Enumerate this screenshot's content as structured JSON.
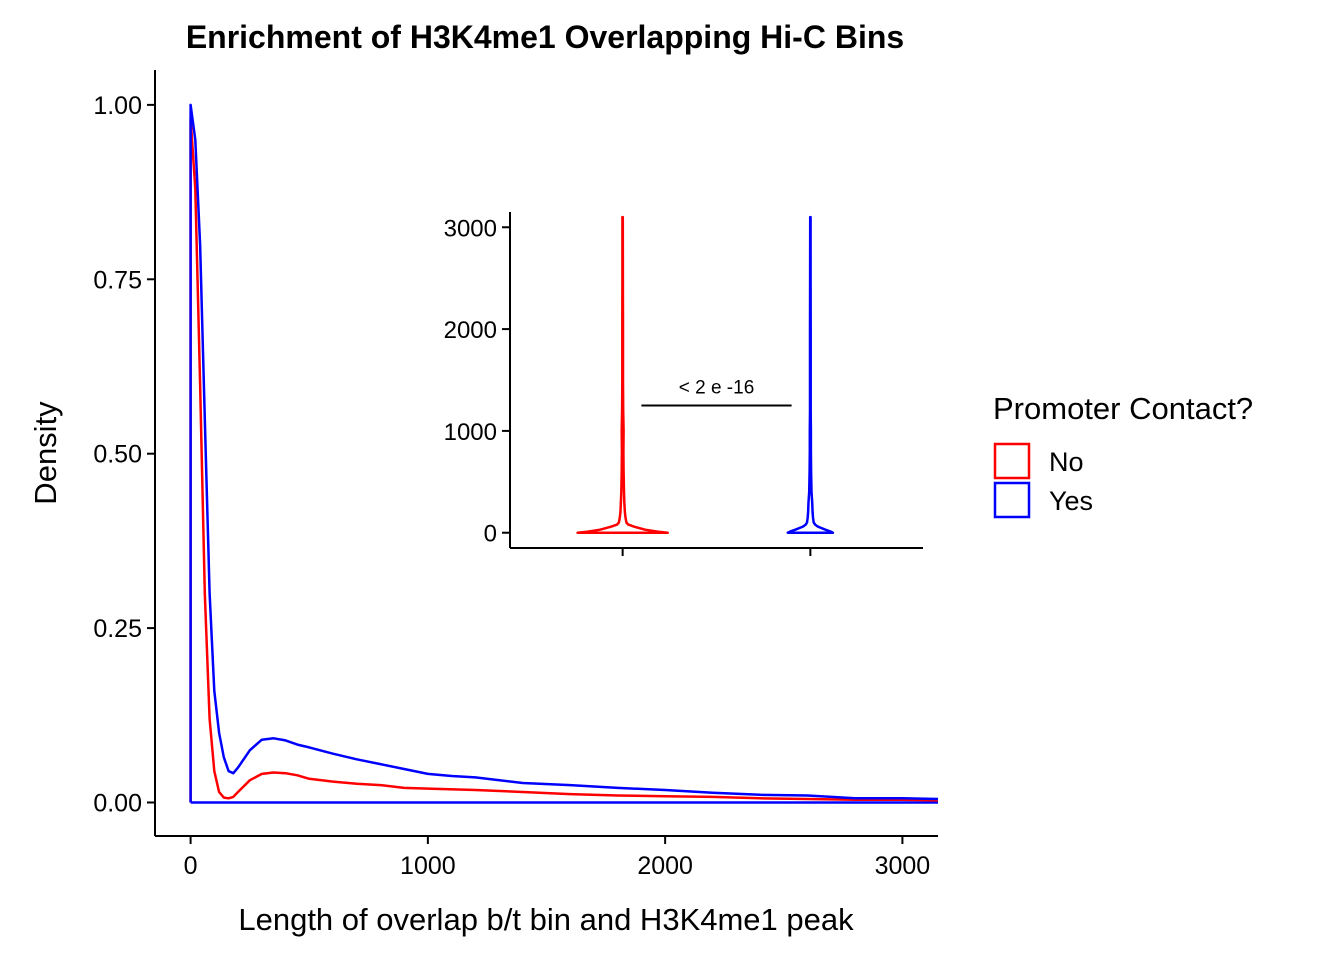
{
  "chart_data": [
    {
      "type": "line",
      "chart_kind": "density",
      "title": "Enrichment of H3K4me1 Overlapping Hi-C Bins",
      "xlabel": "Length of overlap b/t bin and H3K4me1 peak",
      "ylabel": "Density",
      "xlim": [
        -150,
        3150
      ],
      "ylim": [
        -0.048,
        1.05
      ],
      "xticks": [
        0,
        1000,
        2000,
        3000
      ],
      "xtick_labels": [
        "0",
        "1000",
        "2000",
        "3000"
      ],
      "yticks": [
        0,
        0.25,
        0.5,
        0.75,
        1.0
      ],
      "ytick_labels": [
        "0.00",
        "0.25",
        "0.50",
        "0.75",
        "1.00"
      ],
      "grid": false,
      "legend_position": "right",
      "series": [
        {
          "name": "No",
          "color": "#FF0000",
          "x": [
            0,
            0,
            20,
            40,
            60,
            80,
            100,
            120,
            140,
            160,
            180,
            200,
            250,
            300,
            350,
            400,
            450,
            500,
            600,
            700,
            800,
            900,
            1000,
            1200,
            1400,
            1600,
            1800,
            2000,
            2200,
            2400,
            2600,
            2800,
            3000,
            3150
          ],
          "y": [
            0,
            0.98,
            0.88,
            0.6,
            0.3,
            0.12,
            0.045,
            0.015,
            0.007,
            0.006,
            0.008,
            0.015,
            0.032,
            0.041,
            0.043,
            0.042,
            0.039,
            0.034,
            0.03,
            0.027,
            0.025,
            0.021,
            0.02,
            0.018,
            0.015,
            0.012,
            0.01,
            0.009,
            0.008,
            0.006,
            0.005,
            0.004,
            0.004,
            0.003
          ]
        },
        {
          "name": "Yes",
          "color": "#0000FF",
          "x": [
            0,
            0,
            20,
            40,
            60,
            80,
            100,
            120,
            140,
            160,
            180,
            200,
            250,
            300,
            350,
            400,
            450,
            500,
            600,
            700,
            800,
            900,
            1000,
            1100,
            1200,
            1400,
            1600,
            1800,
            2000,
            2200,
            2400,
            2600,
            2800,
            3000,
            3150
          ],
          "y": [
            0,
            1.0,
            0.95,
            0.8,
            0.55,
            0.3,
            0.16,
            0.1,
            0.065,
            0.045,
            0.042,
            0.05,
            0.075,
            0.09,
            0.092,
            0.089,
            0.083,
            0.079,
            0.07,
            0.062,
            0.055,
            0.048,
            0.041,
            0.038,
            0.036,
            0.028,
            0.025,
            0.021,
            0.018,
            0.014,
            0.011,
            0.01,
            0.006,
            0.006,
            0.005
          ]
        }
      ],
      "baseline": {
        "y": 0,
        "color": "#0000FF"
      }
    },
    {
      "type": "violin",
      "yticks": [
        0,
        1000,
        2000,
        3000
      ],
      "ytick_labels": [
        "0",
        "1000",
        "2000",
        "3000"
      ],
      "ylim": [
        -150,
        3150
      ],
      "categories": [
        "No",
        "Yes"
      ],
      "xtick_labels": [
        "",
        ""
      ],
      "series": [
        {
          "name": "No",
          "color": "#FF0000",
          "y": [
            0,
            10,
            30,
            60,
            80,
            100,
            150,
            200,
            300,
            400,
            500,
            600,
            800,
            1000,
            1200,
            1500,
            2000,
            2500,
            3100
          ],
          "half_width": [
            0.24,
            0.19,
            0.12,
            0.06,
            0.03,
            0.02,
            0.015,
            0.012,
            0.009,
            0.007,
            0.006,
            0.005,
            0.004,
            0.005,
            0.003,
            0.002,
            0.002,
            0.0015,
            0.001
          ]
        },
        {
          "name": "Yes",
          "color": "#0000FF",
          "y": [
            0,
            10,
            30,
            60,
            80,
            100,
            150,
            200,
            300,
            400,
            500,
            600,
            800,
            1000,
            1200,
            1500,
            2000,
            2500,
            3100
          ],
          "half_width": [
            0.12,
            0.11,
            0.08,
            0.04,
            0.025,
            0.018,
            0.014,
            0.012,
            0.01,
            0.006,
            0.005,
            0.004,
            0.003,
            0.003,
            0.002,
            0.002,
            0.002,
            0.0015,
            0.001
          ]
        }
      ],
      "annotation": {
        "text": "< 2 e -16",
        "y": 1250
      }
    }
  ],
  "legend": {
    "title": "Promoter Contact?",
    "items": [
      {
        "label": "No",
        "color": "#FF0000"
      },
      {
        "label": "Yes",
        "color": "#0000FF"
      }
    ]
  }
}
